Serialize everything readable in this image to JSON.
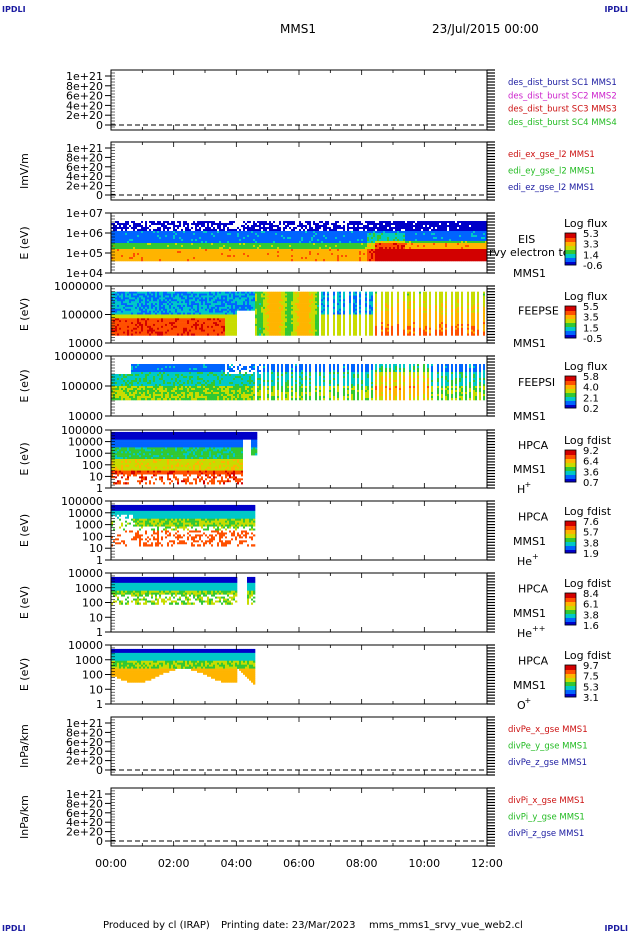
{
  "header": {
    "corner_tl": "IPDLI",
    "corner_tr": "IPDLI",
    "corner_bl": "IPDLI",
    "corner_br": "IPDLI",
    "spacecraft": "MMS1",
    "datetime": "23/Jul/2015 00:00"
  },
  "footer": {
    "produced": "Produced by cl (IRAP)",
    "printing": "Printing date: 23/Mar/2023",
    "script": "mms_mms1_srvy_vue_web2.cl"
  },
  "colors": {
    "blue": "#1a1aa0",
    "magenta": "#cc22cc",
    "red": "#cc1111",
    "green": "#22bb22",
    "spectrogram_scale": [
      "#0000c8",
      "#0064ff",
      "#00c8c8",
      "#32c832",
      "#c8dc00",
      "#ffb400",
      "#ff5000",
      "#d20000"
    ]
  },
  "chart_data": [
    {
      "type": "line",
      "id": "p1",
      "yticks": [
        "1e+21",
        "8e+20",
        "6e+20",
        "4e+20",
        "2e+20",
        "0"
      ],
      "ylabel": "",
      "dashed_zero": true,
      "series": [
        {
          "name": "des_dist_burst SC1 MMS1",
          "color": "#1a1aa0"
        },
        {
          "name": "des_dist_burst SC2 MMS2",
          "color": "#cc22cc"
        },
        {
          "name": "des_dist_burst SC3 MMS3",
          "color": "#cc1111"
        },
        {
          "name": "des_dist_burst SC4 MMS4",
          "color": "#22bb22"
        }
      ]
    },
    {
      "type": "line",
      "id": "p2",
      "yticks": [
        "1e+21",
        "8e+20",
        "6e+20",
        "4e+20",
        "2e+20",
        "0"
      ],
      "ylabel": "lmV/m",
      "dashed_zero": true,
      "series": [
        {
          "name": "edi_ex_gse_l2 MMS1",
          "color": "#cc1111"
        },
        {
          "name": "edi_ey_gse_l2 MMS1",
          "color": "#22bb22"
        },
        {
          "name": "edi_ez_gse_l2 MMS1",
          "color": "#1a1aa0"
        }
      ]
    },
    {
      "type": "heatmap",
      "id": "p3",
      "ylabel": "E (eV)",
      "yticks": [
        "1e+07",
        "1e+06",
        "1e+05",
        "1e+04"
      ],
      "inst": "EIS",
      "inst_sub": "MMS1",
      "overlay": "rvy electron to",
      "cbar_title": "Log flux",
      "cbar_ticks": [
        "5.3",
        "3.3",
        "1.4",
        "-0.6"
      ],
      "pattern": "eis"
    },
    {
      "type": "heatmap",
      "id": "p4",
      "ylabel": "E (eV)",
      "yticks": [
        "1000000",
        "100000",
        "10000"
      ],
      "inst": "FEEPSE",
      "inst_sub": "MMS1",
      "cbar_title": "Log flux",
      "cbar_ticks": [
        "5.5",
        "3.5",
        "1.5",
        "-0.5"
      ],
      "pattern": "feepse"
    },
    {
      "type": "heatmap",
      "id": "p5",
      "ylabel": "E (eV)",
      "yticks": [
        "1000000",
        "100000",
        "10000"
      ],
      "inst": "FEEPSI",
      "inst_sub": "MMS1",
      "cbar_title": "Log flux",
      "cbar_ticks": [
        "5.8",
        "4.0",
        "2.1",
        "0.2"
      ],
      "pattern": "feepsi"
    },
    {
      "type": "heatmap",
      "id": "p6",
      "ylabel": "E (eV)",
      "yticks": [
        "100000",
        "10000",
        "1000",
        "100",
        "10",
        "1"
      ],
      "inst": "HPCA",
      "inst_sub": "MMS1",
      "species": "H",
      "species_sup": "+",
      "cbar_title": "Log fdist",
      "cbar_ticks": [
        "9.2",
        "6.4",
        "3.6",
        "0.7"
      ],
      "pattern": "hplus"
    },
    {
      "type": "heatmap",
      "id": "p7",
      "ylabel": "E (eV)",
      "yticks": [
        "100000",
        "10000",
        "1000",
        "100",
        "10",
        "1"
      ],
      "inst": "HPCA",
      "inst_sub": "MMS1",
      "species": "He",
      "species_sup": "+",
      "cbar_title": "Log fdist",
      "cbar_ticks": [
        "7.6",
        "5.7",
        "3.8",
        "1.9"
      ],
      "pattern": "heplus"
    },
    {
      "type": "heatmap",
      "id": "p8",
      "ylabel": "E (eV)",
      "yticks": [
        "10000",
        "1000",
        "100",
        "10",
        "1"
      ],
      "inst": "HPCA",
      "inst_sub": "MMS1",
      "species": "He",
      "species_sup": "++",
      "cbar_title": "Log fdist",
      "cbar_ticks": [
        "8.4",
        "6.1",
        "3.8",
        "1.6"
      ],
      "pattern": "heplusplus"
    },
    {
      "type": "heatmap",
      "id": "p9",
      "ylabel": "E (eV)",
      "yticks": [
        "10000",
        "1000",
        "100",
        "10",
        "1"
      ],
      "inst": "HPCA",
      "inst_sub": "MMS1",
      "species": "O",
      "species_sup": "+",
      "cbar_title": "Log fdist",
      "cbar_ticks": [
        "9.7",
        "7.5",
        "5.3",
        "3.1"
      ],
      "pattern": "oplus"
    },
    {
      "type": "line",
      "id": "p10",
      "yticks": [
        "1e+21",
        "8e+20",
        "6e+20",
        "4e+20",
        "2e+20",
        "0"
      ],
      "ylabel": "lnPa/km",
      "dashed_zero": true,
      "series": [
        {
          "name": "divPe_x_gse MMS1",
          "color": "#cc1111"
        },
        {
          "name": "divPe_y_gse MMS1",
          "color": "#22bb22"
        },
        {
          "name": "divPe_z_gse MMS1",
          "color": "#1a1aa0"
        }
      ]
    },
    {
      "type": "line",
      "id": "p11",
      "yticks": [
        "1e+21",
        "8e+20",
        "6e+20",
        "4e+20",
        "2e+20",
        "0"
      ],
      "ylabel": "lnPa/km",
      "dashed_zero": true,
      "series": [
        {
          "name": "divPi_x_gse MMS1",
          "color": "#cc1111"
        },
        {
          "name": "divPi_y_gse MMS1",
          "color": "#22bb22"
        },
        {
          "name": "divPi_z_gse MMS1",
          "color": "#1a1aa0"
        }
      ]
    }
  ],
  "xaxis": {
    "ticks": [
      "00:00",
      "02:00",
      "04:00",
      "06:00",
      "08:00",
      "10:00",
      "12:00"
    ],
    "range_hours": [
      0,
      12
    ]
  }
}
